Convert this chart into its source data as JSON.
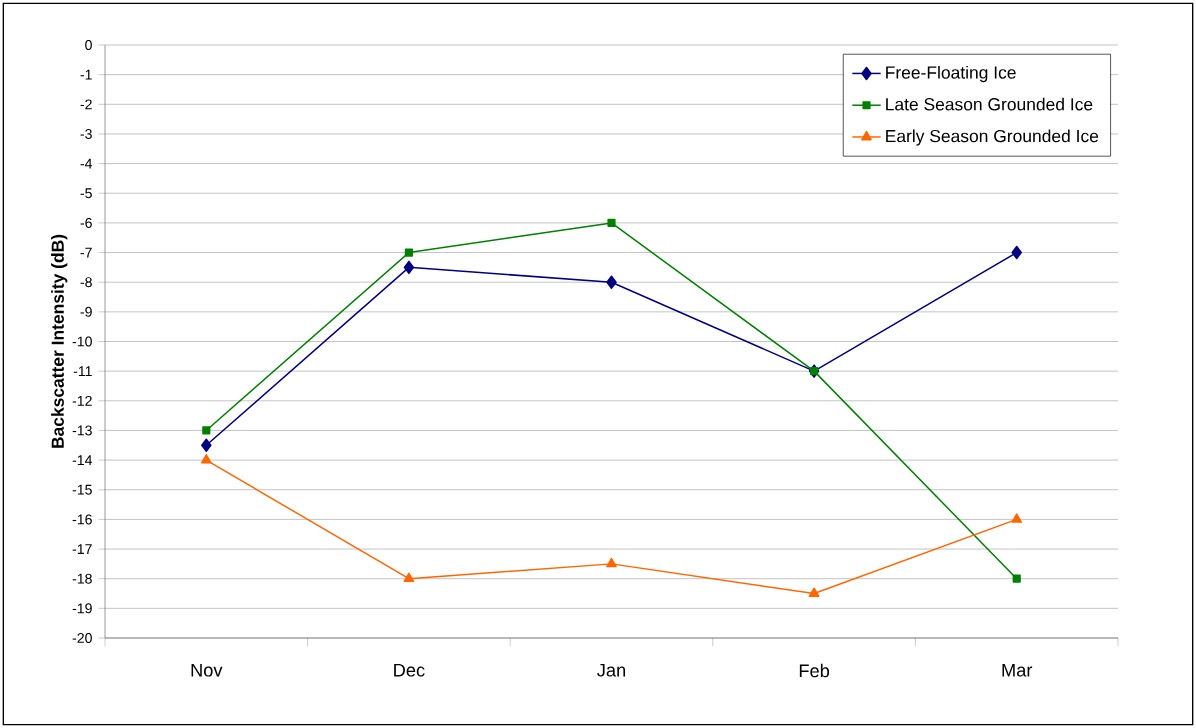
{
  "chart_data": {
    "type": "line",
    "ylabel": "Backscatter Intensity (dB)",
    "categories": [
      "Nov",
      "Dec",
      "Jan",
      "Feb",
      "Mar"
    ],
    "series": [
      {
        "name": "Free-Floating Ice",
        "color": "#000080",
        "marker": "diamond",
        "values": [
          -13.5,
          -7.5,
          -8,
          -11,
          -7
        ]
      },
      {
        "name": "Late Season Grounded Ice",
        "color": "#008000",
        "marker": "square",
        "values": [
          -13,
          -7,
          -6,
          -11,
          -18
        ]
      },
      {
        "name": "Early Season Grounded Ice",
        "color": "#ff6600",
        "marker": "triangle",
        "values": [
          -14,
          -18,
          -17.5,
          -18.5,
          -16
        ]
      }
    ],
    "ylim": [
      -20,
      0
    ],
    "yticks": [
      -20,
      -19,
      -18,
      -17,
      -16,
      -15,
      -14,
      -13,
      -12,
      -11,
      -10,
      -9,
      -8,
      -7,
      -6,
      -5,
      -4,
      -3,
      -2,
      -1,
      0
    ],
    "grid": "y",
    "legend": "top right",
    "line_style": "solid"
  }
}
